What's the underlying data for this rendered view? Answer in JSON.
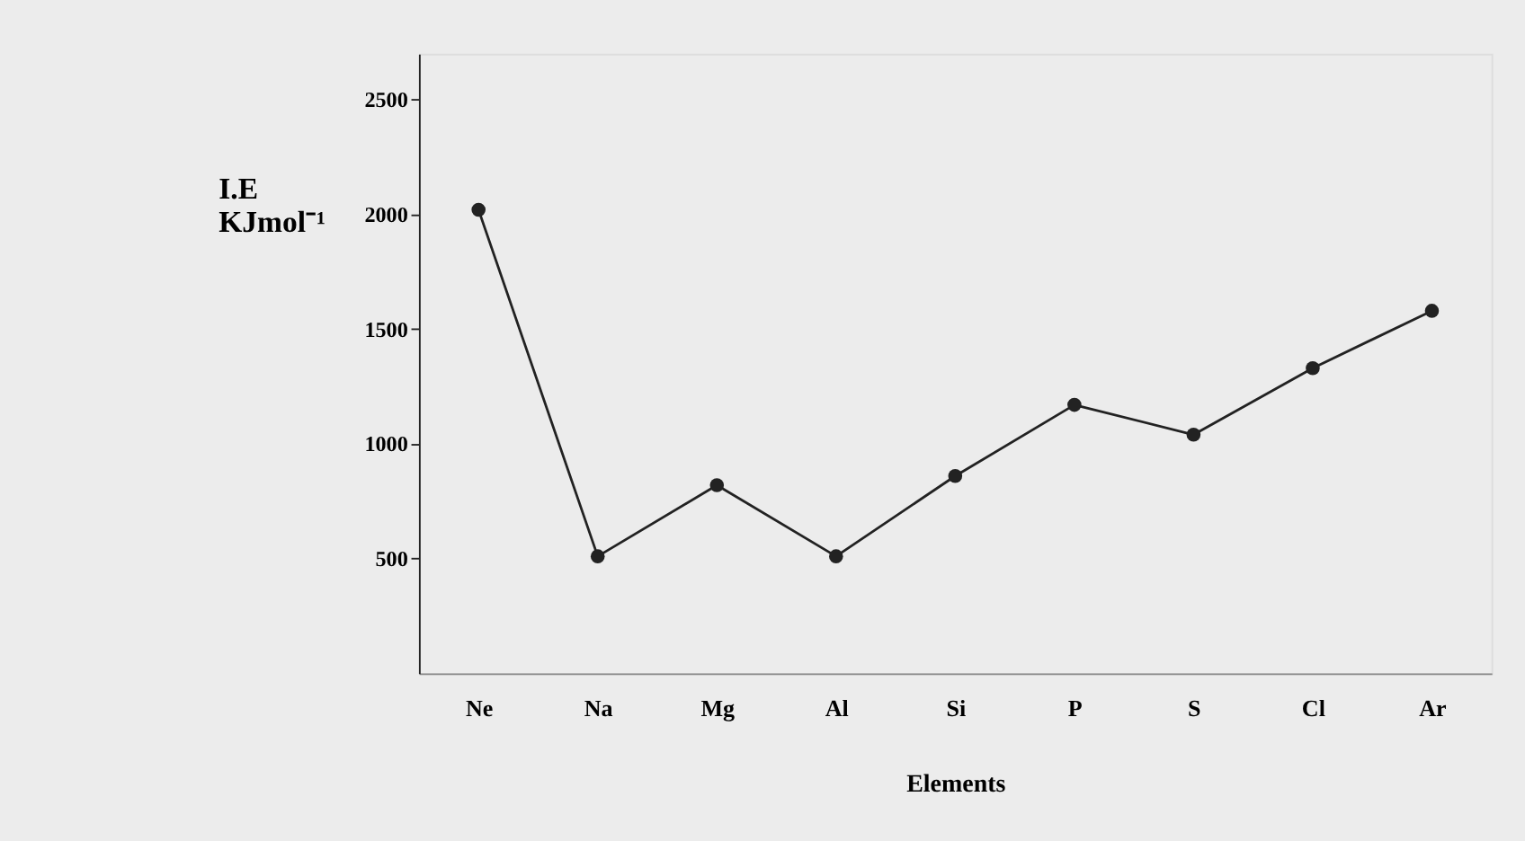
{
  "chart_data": {
    "type": "line",
    "xlabel": "Elements",
    "ylabel": "I.E KJmol⁻¹",
    "categories": [
      "Ne",
      "Na",
      "Mg",
      "Al",
      "Si",
      "P",
      "S",
      "Cl",
      "Ar"
    ],
    "series": [
      {
        "color": "#222222",
        "values": [
          2020,
          510,
          820,
          510,
          860,
          1170,
          1040,
          1330,
          1580
        ]
      }
    ],
    "ylim": [
      0,
      2700
    ],
    "yticks": [
      500,
      1000,
      1500,
      2000,
      2500
    ],
    "grid": false,
    "legend": false,
    "marker": "circle",
    "line_style": "solid"
  }
}
